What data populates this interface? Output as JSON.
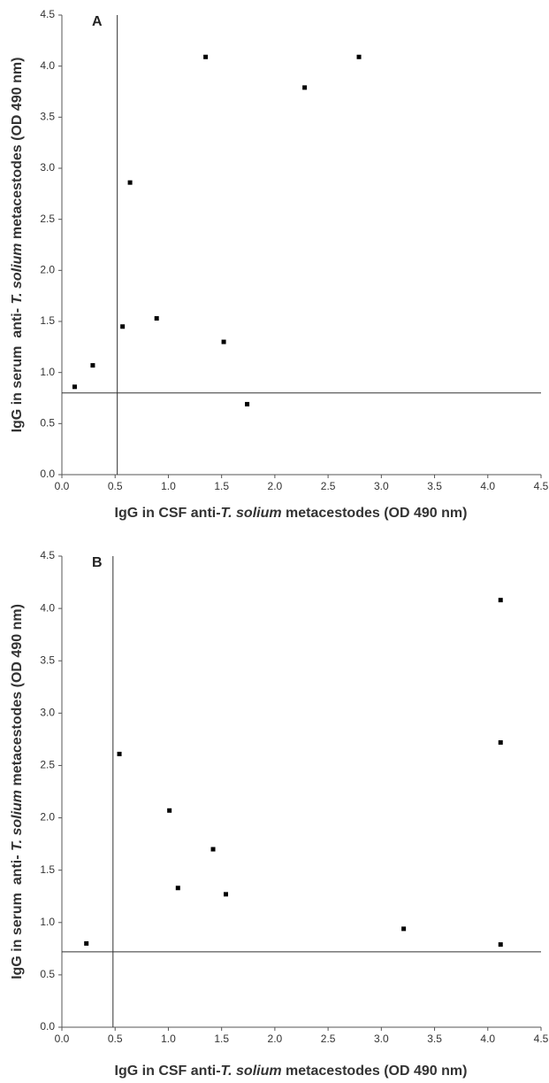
{
  "chart_data": [
    {
      "type": "scatter",
      "panel": "A",
      "x": [
        0.12,
        0.29,
        0.57,
        0.64,
        0.89,
        1.35,
        1.52,
        1.74,
        2.28,
        2.79
      ],
      "values": [
        0.86,
        1.07,
        1.45,
        2.86,
        1.53,
        4.09,
        1.3,
        0.69,
        3.79,
        4.09
      ],
      "color": "#000000",
      "xlabel": [
        "IgG in CSF anti-",
        "T. solium",
        " metacestodes (OD 490 nm)"
      ],
      "ylabel": [
        "IgG in serum  anti- ",
        "T. solium",
        " metacestodes (OD 490 nm)"
      ],
      "xlim": [
        0,
        4.5
      ],
      "ylim": [
        0,
        4.5
      ],
      "xticks": [
        {
          "value": 0,
          "label": "0.0"
        },
        0.5,
        {
          "value": 1,
          "label": "1.0"
        },
        1.5,
        {
          "value": 2,
          "label": "2.0"
        },
        2.5,
        {
          "value": 3,
          "label": "3.0"
        },
        3.5,
        {
          "value": 4,
          "label": "4.0"
        },
        4.5
      ],
      "yticks": [
        {
          "value": 0,
          "label": "0.0"
        },
        0.5,
        {
          "value": 1,
          "label": "1.0"
        },
        1.5,
        {
          "value": 2,
          "label": "2.0"
        },
        2.5,
        {
          "value": 3,
          "label": "3.0"
        },
        3.5,
        {
          "value": 4,
          "label": "4.0"
        },
        4.5
      ],
      "cutoff_x": 0.52,
      "cutoff_y": 0.8,
      "grid": false
    },
    {
      "type": "scatter",
      "panel": "B",
      "x": [
        0.23,
        0.54,
        1.01,
        1.09,
        1.42,
        1.54,
        3.21,
        4.12,
        4.12,
        4.12
      ],
      "values": [
        0.8,
        2.61,
        2.07,
        1.33,
        1.7,
        1.27,
        0.94,
        4.08,
        2.72,
        0.79
      ],
      "color": "#000000",
      "xlabel": [
        "IgG in CSF anti-",
        "T. solium",
        " metacestodes (OD 490 nm)"
      ],
      "ylabel": [
        "IgG in serum  anti- ",
        "T. solium",
        " metacestodes (OD 490 nm)"
      ],
      "xlim": [
        0,
        4.5
      ],
      "ylim": [
        0,
        4.5
      ],
      "xticks": [
        {
          "value": 0,
          "label": "0.0"
        },
        0.5,
        {
          "value": 1,
          "label": "1.0"
        },
        1.5,
        {
          "value": 2,
          "label": "2.0"
        },
        2.5,
        {
          "value": 3,
          "label": "3.0"
        },
        3.5,
        {
          "value": 4,
          "label": "4.0"
        },
        4.5
      ],
      "yticks": [
        {
          "value": 0,
          "label": "0.0"
        },
        0.5,
        {
          "value": 1,
          "label": "1.0"
        },
        1.5,
        {
          "value": 2,
          "label": "2.0"
        },
        2.5,
        {
          "value": 3,
          "label": "3.0"
        },
        3.5,
        {
          "value": 4,
          "label": "4.0"
        },
        4.5
      ],
      "cutoff_x": 0.48,
      "cutoff_y": 0.72,
      "grid": false
    }
  ]
}
